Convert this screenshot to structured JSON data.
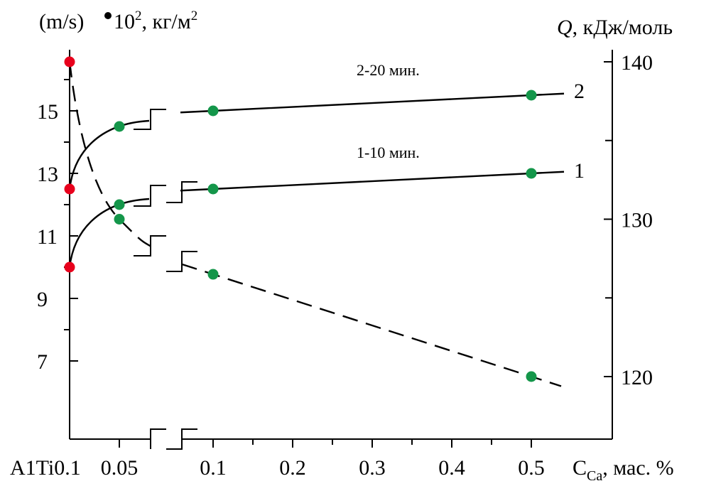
{
  "chart_data": {
    "type": "line",
    "left_axis": {
      "label": "(m/s)",
      "bullet_label_mid": " 10",
      "bullet_label_sup": "2",
      "bullet_label_end": ", кг/м",
      "bullet_label_sup2": "2",
      "ticks": [
        "15",
        "13",
        "11",
        "9",
        "7"
      ],
      "tick_values": [
        15,
        13,
        11,
        9,
        7
      ],
      "minor_ticks": [
        16,
        14,
        12,
        10,
        8
      ],
      "range": [
        4.9,
        17.5
      ]
    },
    "right_axis": {
      "label_symbol": "Q",
      "label_rest": ", кДж/моль",
      "ticks": [
        "140",
        "130",
        "120"
      ],
      "tick_values": [
        140,
        130,
        120
      ],
      "minor_ticks": [
        135,
        125
      ],
      "range": [
        116,
        141
      ]
    },
    "x_axis": {
      "label_main": "C",
      "label_sub": "Ca",
      "label_rest": ", мас. %",
      "base_label": "A1Ti0.1",
      "ticks": [
        "0.05",
        "0.1",
        "0.2",
        "0.3",
        "0.4",
        "0.5"
      ],
      "tick_values": [
        0.05,
        0.1,
        0.2,
        0.3,
        0.4,
        0.5
      ],
      "note": "axis broken between 0.05 and 0.1"
    },
    "series": [
      {
        "name": "2",
        "curve_label": "2",
        "time_label": "2-20 мин.",
        "axis": "left",
        "points": [
          {
            "x": 0,
            "y": 12.5,
            "color": "#e8001c"
          },
          {
            "x": 0.05,
            "y": 14.5,
            "color": "#14964a"
          },
          {
            "x": 0.1,
            "y": 15.0,
            "color": "#14964a"
          },
          {
            "x": 0.5,
            "y": 15.5,
            "color": "#14964a"
          }
        ]
      },
      {
        "name": "1",
        "curve_label": "1",
        "time_label": "1-10 мин.",
        "axis": "left",
        "points": [
          {
            "x": 0,
            "y": 10.0,
            "color": "#e8001c"
          },
          {
            "x": 0.05,
            "y": 12.0,
            "color": "#14964a"
          },
          {
            "x": 0.1,
            "y": 12.5,
            "color": "#14964a"
          },
          {
            "x": 0.5,
            "y": 13.0,
            "color": "#14964a"
          }
        ]
      },
      {
        "name": "Q",
        "axis": "right",
        "dashed": true,
        "points": [
          {
            "x": 0,
            "y": 140.0,
            "color": "#e8001c"
          },
          {
            "x": 0.05,
            "y": 130.0,
            "color": "#14964a"
          },
          {
            "x": 0.1,
            "y": 126.5,
            "color": "#14964a"
          },
          {
            "x": 0.5,
            "y": 120.0,
            "color": "#14964a"
          }
        ]
      }
    ]
  }
}
